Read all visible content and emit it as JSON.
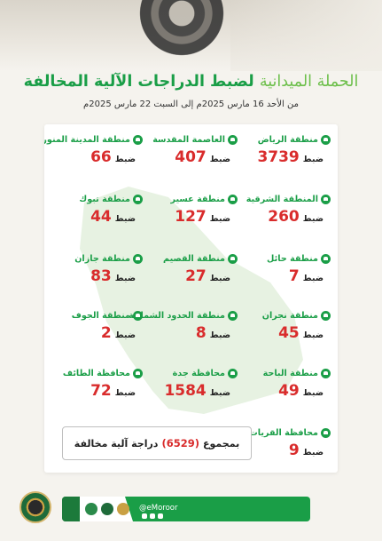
{
  "title": {
    "part_light": "الحملة الميدانية",
    "part_bold": "لضبط الدراجات الآلية المخالفة"
  },
  "subtitle": "من الأحد 16 مارس 2025م إلى السبت 22 مارس 2025م",
  "seized_label": "ضبط",
  "regions": [
    {
      "name": "منطقة الرياض",
      "count": "3739"
    },
    {
      "name": "العاصمة المقدسة",
      "count": "407"
    },
    {
      "name": "منطقة المدينة المنورة",
      "count": "66"
    },
    {
      "name": "المنطقة الشرقية",
      "count": "260"
    },
    {
      "name": "منطقة عسير",
      "count": "127"
    },
    {
      "name": "منطقة تبوك",
      "count": "44"
    },
    {
      "name": "منطقة حائل",
      "count": "7"
    },
    {
      "name": "منطقة القصيم",
      "count": "27"
    },
    {
      "name": "منطقة جازان",
      "count": "83"
    },
    {
      "name": "منطقة نجران",
      "count": "45"
    },
    {
      "name": "منطقة الحدود الشمالية",
      "count": "8"
    },
    {
      "name": "منطقة الجوف",
      "count": "2"
    },
    {
      "name": "منطقة الباحة",
      "count": "49"
    },
    {
      "name": "محافظة جدة",
      "count": "1584"
    },
    {
      "name": "محافظة الطائف",
      "count": "72"
    },
    {
      "name": "محافظة القريات",
      "count": "9"
    }
  ],
  "total": {
    "prefix": "بمجموع",
    "value": "(6529)",
    "suffix": "دراجة آلية مخالفة"
  },
  "footer": {
    "handle": "@eMoroor"
  },
  "colors": {
    "green": "#1a9e47",
    "red": "#d92c2c"
  }
}
